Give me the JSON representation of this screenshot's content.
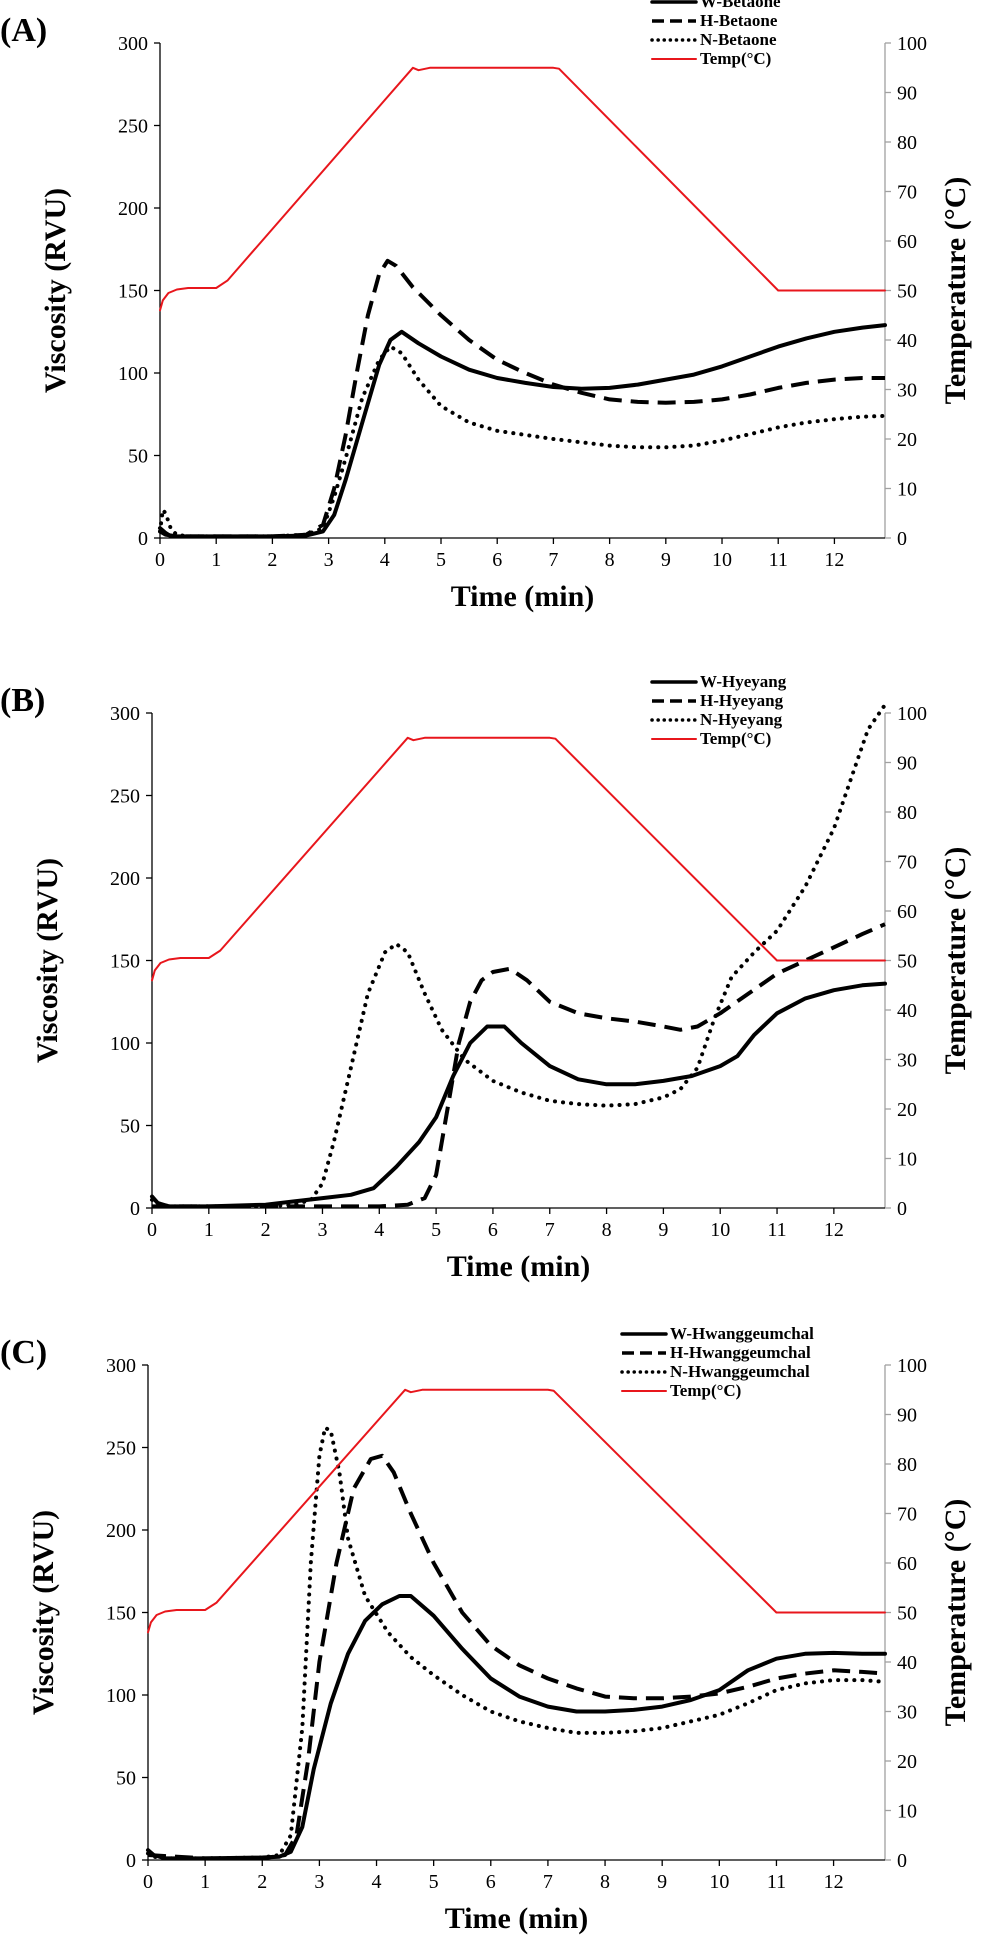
{
  "chart_data": [
    {
      "type": "line",
      "panel_label": "(A)",
      "xlabel": "Time (min)",
      "ylabel": "Viscosity (RVU)",
      "y2label": "Temperature (°C)",
      "xlim": [
        0,
        12.9
      ],
      "ylim": [
        0,
        300
      ],
      "y2lim": [
        0,
        100
      ],
      "x_ticks": [
        0,
        1,
        2,
        3,
        4,
        5,
        6,
        7,
        8,
        9,
        10,
        11,
        12
      ],
      "y_ticks": [
        0,
        50,
        100,
        150,
        200,
        250,
        300
      ],
      "y2_ticks": [
        0,
        10,
        20,
        30,
        40,
        50,
        60,
        70,
        80,
        90,
        100
      ],
      "legend_position": "top-right",
      "series": [
        {
          "name": "W-Betaone",
          "style": "solid",
          "axis": "left",
          "x": [
            0,
            0.1,
            0.2,
            0.5,
            1,
            2,
            2.6,
            2.9,
            3.1,
            3.3,
            3.6,
            3.9,
            4.1,
            4.3,
            4.6,
            5,
            5.5,
            6,
            6.5,
            7,
            7.5,
            8,
            8.5,
            9,
            9.5,
            10,
            10.5,
            11,
            11.5,
            12,
            12.5,
            12.9
          ],
          "values": [
            6,
            3,
            1,
            1,
            1,
            1,
            1.5,
            4,
            14,
            35,
            70,
            105,
            120,
            125,
            118,
            110,
            102,
            97,
            94,
            91.5,
            90.5,
            91,
            93,
            96,
            99,
            104,
            110,
            116,
            121,
            125,
            127.5,
            129
          ]
        },
        {
          "name": "H-Betaone",
          "style": "dashed",
          "axis": "left",
          "x": [
            0,
            0.1,
            0.3,
            1,
            2,
            2.6,
            2.9,
            3.1,
            3.3,
            3.5,
            3.7,
            3.9,
            4.05,
            4.2,
            4.5,
            5,
            5.5,
            6,
            6.5,
            7,
            7.5,
            8,
            8.5,
            9,
            9.5,
            10,
            10.5,
            11,
            11.5,
            12,
            12.5,
            12.9
          ],
          "values": [
            4,
            2,
            1,
            1,
            1,
            2,
            8,
            30,
            62,
            100,
            135,
            160,
            168,
            165,
            152,
            135,
            120,
            108,
            100,
            93,
            88,
            84,
            82.5,
            82,
            82.5,
            84,
            87,
            91,
            94,
            96,
            97,
            97
          ]
        },
        {
          "name": "N-Betaone",
          "style": "dotted",
          "axis": "left",
          "x": [
            0,
            0.05,
            0.1,
            0.15,
            0.2,
            0.3,
            0.5,
            1,
            2,
            2.6,
            2.9,
            3.1,
            3.3,
            3.6,
            3.9,
            4.1,
            4.3,
            4.6,
            5,
            5.5,
            6,
            7,
            8,
            8.5,
            9,
            9.5,
            10,
            10.5,
            11,
            11.5,
            12,
            12.5,
            12.9
          ],
          "values": [
            4,
            17,
            15,
            10,
            5,
            2,
            1,
            1,
            1,
            2,
            6,
            25,
            48,
            85,
            108,
            116,
            112,
            96,
            80,
            70,
            65,
            60,
            56,
            55,
            55,
            56,
            59,
            63,
            67,
            70,
            72,
            73.5,
            74
          ]
        },
        {
          "name": "Temp(°C)",
          "style": "red",
          "axis": "right",
          "x": [
            0,
            0.05,
            0.15,
            0.3,
            0.5,
            0.8,
            1.0,
            1.2,
            4.5,
            4.6,
            4.8,
            7.0,
            7.1,
            11.0,
            12.9
          ],
          "values": [
            46,
            48,
            49.5,
            50.2,
            50.5,
            50.5,
            50.5,
            52,
            95,
            94.5,
            95,
            95,
            94.8,
            50,
            50
          ]
        }
      ]
    },
    {
      "type": "line",
      "panel_label": "(B)",
      "xlabel": "Time (min)",
      "ylabel": "Viscosity (RVU)",
      "y2label": "Temperature (°C)",
      "xlim": [
        0,
        12.9
      ],
      "ylim": [
        0,
        300
      ],
      "y2lim": [
        0,
        100
      ],
      "x_ticks": [
        0,
        1,
        2,
        3,
        4,
        5,
        6,
        7,
        8,
        9,
        10,
        11,
        12
      ],
      "y_ticks": [
        0,
        50,
        100,
        150,
        200,
        250,
        300
      ],
      "y2_ticks": [
        0,
        10,
        20,
        30,
        40,
        50,
        60,
        70,
        80,
        90,
        100
      ],
      "legend_position": "top-right",
      "series": [
        {
          "name": "W-Hyeyang",
          "style": "solid",
          "axis": "left",
          "x": [
            0,
            0.1,
            0.3,
            1,
            2,
            2.5,
            3,
            3.5,
            3.9,
            4.3,
            4.7,
            5,
            5.3,
            5.6,
            5.9,
            6.2,
            6.5,
            7,
            7.5,
            8,
            8.5,
            9,
            9.5,
            10,
            10.3,
            10.6,
            11,
            11.5,
            12,
            12.5,
            12.9
          ],
          "values": [
            7,
            3,
            1,
            1,
            2,
            4,
            6,
            8,
            12,
            25,
            40,
            55,
            80,
            100,
            110,
            110,
            100,
            86,
            78,
            75,
            75,
            77,
            80,
            86,
            92,
            105,
            118,
            127,
            132,
            135,
            136
          ]
        },
        {
          "name": "H-Hyeyang",
          "style": "dashed",
          "axis": "left",
          "x": [
            0,
            1,
            2,
            3,
            4,
            4.5,
            4.8,
            5,
            5.2,
            5.4,
            5.6,
            5.8,
            6,
            6.3,
            6.6,
            7,
            7.5,
            8,
            8.5,
            9,
            9.3,
            9.6,
            10,
            10.5,
            11,
            11.5,
            12,
            12.5,
            12.9
          ],
          "values": [
            1,
            1,
            1,
            1,
            1,
            2,
            6,
            20,
            60,
            100,
            125,
            138,
            143,
            145,
            138,
            125,
            118,
            115,
            113,
            110,
            108,
            110,
            118,
            130,
            142,
            150,
            158,
            166,
            172
          ]
        },
        {
          "name": "N-Hyeyang",
          "style": "dotted",
          "axis": "left",
          "x": [
            0,
            0.1,
            0.3,
            1,
            2,
            2.5,
            2.8,
            3,
            3.2,
            3.5,
            3.8,
            4.1,
            4.3,
            4.5,
            4.8,
            5.1,
            5.5,
            6,
            6.5,
            7,
            7.5,
            8,
            8.5,
            9,
            9.3,
            9.6,
            9.9,
            10.2,
            10.6,
            11,
            11.5,
            12,
            12.3,
            12.6,
            12.9
          ],
          "values": [
            5,
            3,
            1,
            1,
            1,
            2,
            5,
            15,
            40,
            85,
            130,
            155,
            160,
            155,
            130,
            108,
            90,
            77,
            70,
            65,
            63,
            62,
            63,
            67,
            72,
            85,
            115,
            140,
            155,
            168,
            195,
            230,
            260,
            290,
            305
          ]
        },
        {
          "name": "Temp(°C)",
          "style": "red",
          "axis": "right",
          "x": [
            0,
            0.05,
            0.15,
            0.3,
            0.5,
            0.8,
            1.0,
            1.2,
            4.5,
            4.6,
            4.8,
            7.0,
            7.1,
            11.0,
            12.9
          ],
          "values": [
            46,
            48,
            49.5,
            50.2,
            50.5,
            50.5,
            50.5,
            52,
            95,
            94.5,
            95,
            95,
            94.8,
            50,
            50
          ]
        }
      ]
    },
    {
      "type": "line",
      "panel_label": "(C)",
      "xlabel": "Time (min)",
      "ylabel": "Viscosity (RVU)",
      "y2label": "Temperature (°C)",
      "xlim": [
        0,
        12.9
      ],
      "ylim": [
        0,
        300
      ],
      "y2lim": [
        0,
        100
      ],
      "x_ticks": [
        0,
        1,
        2,
        3,
        4,
        5,
        6,
        7,
        8,
        9,
        10,
        11,
        12
      ],
      "y_ticks": [
        0,
        50,
        100,
        150,
        200,
        250,
        300
      ],
      "y2_ticks": [
        0,
        10,
        20,
        30,
        40,
        50,
        60,
        70,
        80,
        90,
        100
      ],
      "legend_position": "top-right",
      "series": [
        {
          "name": "W-Hwanggeumchal",
          "style": "solid",
          "axis": "left",
          "x": [
            0,
            0.1,
            0.3,
            1,
            2,
            2.3,
            2.5,
            2.7,
            2.9,
            3.2,
            3.5,
            3.8,
            4.1,
            4.4,
            4.6,
            5,
            5.5,
            6,
            6.5,
            7,
            7.5,
            8,
            8.5,
            9,
            9.5,
            10,
            10.5,
            11,
            11.5,
            12,
            12.5,
            12.9
          ],
          "values": [
            6,
            3,
            1,
            1,
            1.5,
            2,
            5,
            20,
            55,
            95,
            125,
            145,
            155,
            160,
            160,
            148,
            128,
            110,
            99,
            93,
            90,
            90,
            91,
            93,
            97,
            103,
            115,
            122,
            125,
            125.5,
            125,
            125
          ]
        },
        {
          "name": "H-Hwanggeumchal",
          "style": "dashed",
          "axis": "left",
          "x": [
            0,
            1,
            2,
            2.4,
            2.6,
            2.8,
            3.0,
            3.3,
            3.6,
            3.9,
            4.1,
            4.3,
            4.6,
            5,
            5.5,
            6,
            6.5,
            7,
            7.5,
            8,
            8.5,
            9,
            9.5,
            10,
            10.5,
            11,
            11.5,
            12,
            12.5,
            12.9
          ],
          "values": [
            3,
            1,
            1,
            3,
            15,
            60,
            120,
            180,
            225,
            243,
            245,
            235,
            210,
            180,
            150,
            130,
            118,
            110,
            104,
            99,
            98,
            98,
            99,
            101,
            105,
            110,
            113,
            115,
            114,
            113
          ]
        },
        {
          "name": "N-Hwanggeumchal",
          "style": "dotted",
          "axis": "left",
          "x": [
            0,
            0.1,
            0.3,
            1,
            2,
            2.3,
            2.5,
            2.7,
            2.85,
            3.0,
            3.1,
            3.2,
            3.35,
            3.5,
            3.8,
            4.2,
            4.6,
            5,
            5.5,
            6,
            6.5,
            7,
            7.5,
            8,
            8.5,
            9,
            9.5,
            10,
            10.5,
            11,
            11.5,
            12,
            12.5,
            12.9
          ],
          "values": [
            4,
            2,
            1,
            1,
            1.5,
            3,
            15,
            80,
            180,
            245,
            262,
            260,
            235,
            195,
            160,
            138,
            123,
            112,
            100,
            90,
            84,
            80,
            77,
            77,
            78,
            80,
            84,
            88,
            95,
            103,
            107,
            109,
            109,
            108
          ]
        },
        {
          "name": "Temp(°C)",
          "style": "red",
          "axis": "right",
          "x": [
            0,
            0.05,
            0.15,
            0.3,
            0.5,
            0.8,
            1.0,
            1.2,
            4.5,
            4.6,
            4.8,
            7.0,
            7.1,
            11.0,
            12.9
          ],
          "values": [
            46,
            48,
            49.5,
            50.2,
            50.5,
            50.5,
            50.5,
            52,
            95,
            94.5,
            95,
            95,
            94.8,
            50,
            50
          ]
        }
      ]
    }
  ],
  "colors": {
    "temperature": "#e8161c",
    "series": "#000000",
    "axis": "#000000",
    "axis_gray": "#a0a0a0"
  }
}
